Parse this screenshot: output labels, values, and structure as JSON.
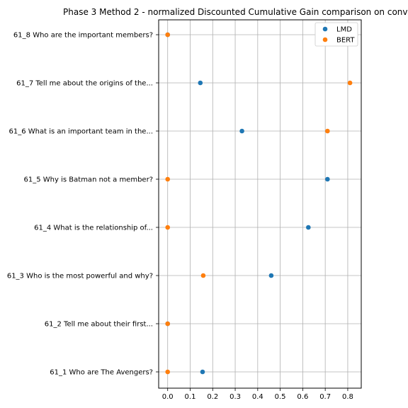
{
  "chart_data": {
    "type": "scatter",
    "title": "Phase 3 Method 2 - normalized Discounted Cumulative Gain comparison on conv",
    "xlabel": "",
    "ylabel": "",
    "xlim": [
      -0.04,
      0.86
    ],
    "x_ticks": [
      0.0,
      0.1,
      0.2,
      0.3,
      0.4,
      0.5,
      0.6,
      0.7,
      0.8
    ],
    "x_tick_labels": [
      "0.0",
      "0.1",
      "0.2",
      "0.3",
      "0.4",
      "0.5",
      "0.6",
      "0.7",
      "0.8"
    ],
    "grid": true,
    "legend_position": "top-right",
    "categories": [
      "61_1 Who are The Avengers?",
      "61_2 Tell me about their first...",
      "61_3 Who is the most powerful and why?",
      "61_4 What is the relationship of...",
      "61_5 Why is Batman not a member?",
      "61_6 What is an important team in the...",
      "61_7 Tell me about the origins of the...",
      "61_8 Who are the important members?"
    ],
    "series": [
      {
        "name": "LMD",
        "color": "#1f77b4",
        "values": [
          0.155,
          0.0,
          0.46,
          0.625,
          0.71,
          0.33,
          0.145,
          0.0
        ]
      },
      {
        "name": "BERT",
        "color": "#ff7f0e",
        "values": [
          0.0,
          0.0,
          0.158,
          0.0,
          0.0,
          0.71,
          0.81,
          0.0
        ]
      }
    ]
  }
}
